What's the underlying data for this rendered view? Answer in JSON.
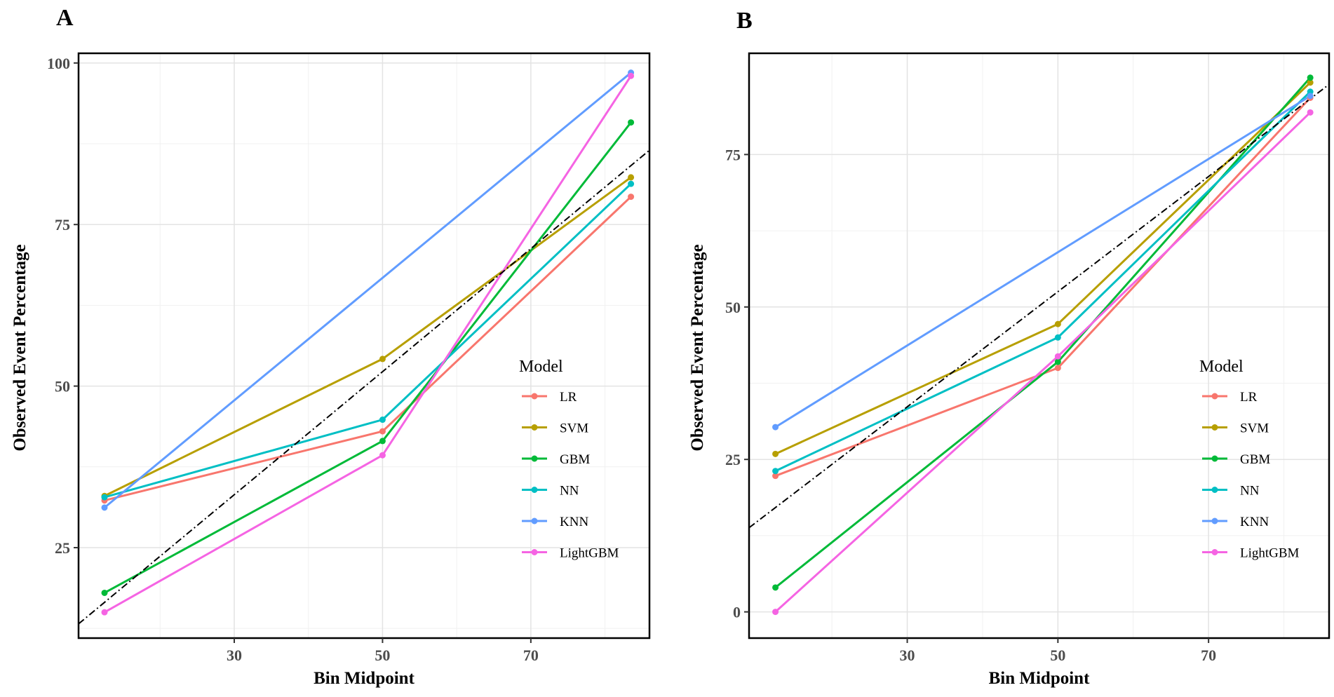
{
  "chart_data": [
    {
      "type": "line",
      "panel_label": "A",
      "xlabel": "Bin Midpoint",
      "ylabel": "Observed Event Percentage",
      "xlim": [
        9,
        86
      ],
      "ylim": [
        11,
        101.5
      ],
      "xticks": [
        30,
        50,
        70
      ],
      "xticks_minor": [
        20,
        40,
        60,
        80
      ],
      "yticks": [
        25,
        50,
        75,
        100
      ],
      "yticks_minor": [
        12.5,
        37.5,
        62.5,
        87.5
      ],
      "grid": true,
      "reference_line": {
        "style": "dash-dot",
        "x": [
          9,
          86
        ],
        "y": [
          13.2,
          86.5
        ]
      },
      "legend": {
        "title": "Model",
        "position": "right-inside"
      },
      "series": [
        {
          "name": "LR",
          "color": "#F8766D",
          "x": [
            12.5,
            50,
            83.5
          ],
          "y": [
            32.3,
            43.0,
            79.3
          ]
        },
        {
          "name": "SVM",
          "color": "#B79F00",
          "x": [
            12.5,
            50,
            83.5
          ],
          "y": [
            33.0,
            54.2,
            82.3
          ]
        },
        {
          "name": "GBM",
          "color": "#00BA38",
          "x": [
            12.5,
            50,
            83.5
          ],
          "y": [
            18.0,
            41.5,
            90.8
          ]
        },
        {
          "name": "NN",
          "color": "#00BFC4",
          "x": [
            12.5,
            50,
            83.5
          ],
          "y": [
            32.8,
            44.8,
            81.3
          ]
        },
        {
          "name": "KNN",
          "color": "#619CFF",
          "x": [
            12.5,
            83.5
          ],
          "y": [
            31.2,
            98.5
          ]
        },
        {
          "name": "LightGBM",
          "color": "#F564E3",
          "x": [
            12.5,
            50,
            83.5
          ],
          "y": [
            15.0,
            39.3,
            98.0
          ]
        }
      ]
    },
    {
      "type": "line",
      "panel_label": "B",
      "xlabel": "Bin Midpoint",
      "ylabel": "Observed Event Percentage",
      "xlim": [
        9,
        86
      ],
      "ylim": [
        -4.3,
        91.6
      ],
      "xticks": [
        30,
        50,
        70
      ],
      "xticks_minor": [
        20,
        40,
        60,
        80
      ],
      "yticks": [
        0,
        25,
        50,
        75
      ],
      "yticks_minor": [
        12.5,
        37.5,
        62.5
      ],
      "grid": true,
      "reference_line": {
        "style": "dash-dot",
        "x": [
          9,
          86
        ],
        "y": [
          13.8,
          86.5
        ]
      },
      "legend": {
        "title": "Model",
        "position": "right-inside"
      },
      "series": [
        {
          "name": "LR",
          "color": "#F8766D",
          "x": [
            12.5,
            50,
            83.5
          ],
          "y": [
            22.3,
            40.0,
            84.3
          ]
        },
        {
          "name": "SVM",
          "color": "#B79F00",
          "x": [
            12.5,
            50,
            83.5
          ],
          "y": [
            25.9,
            47.2,
            86.8
          ]
        },
        {
          "name": "GBM",
          "color": "#00BA38",
          "x": [
            12.5,
            50,
            83.5
          ],
          "y": [
            4.0,
            41.0,
            87.6
          ]
        },
        {
          "name": "NN",
          "color": "#00BFC4",
          "x": [
            12.5,
            50,
            83.5
          ],
          "y": [
            23.1,
            45.0,
            85.3
          ]
        },
        {
          "name": "KNN",
          "color": "#619CFF",
          "x": [
            12.5,
            83.5
          ],
          "y": [
            30.3,
            84.6
          ]
        },
        {
          "name": "LightGBM",
          "color": "#F564E3",
          "x": [
            12.5,
            50,
            83.5
          ],
          "y": [
            0.0,
            41.9,
            81.9
          ]
        }
      ]
    }
  ]
}
